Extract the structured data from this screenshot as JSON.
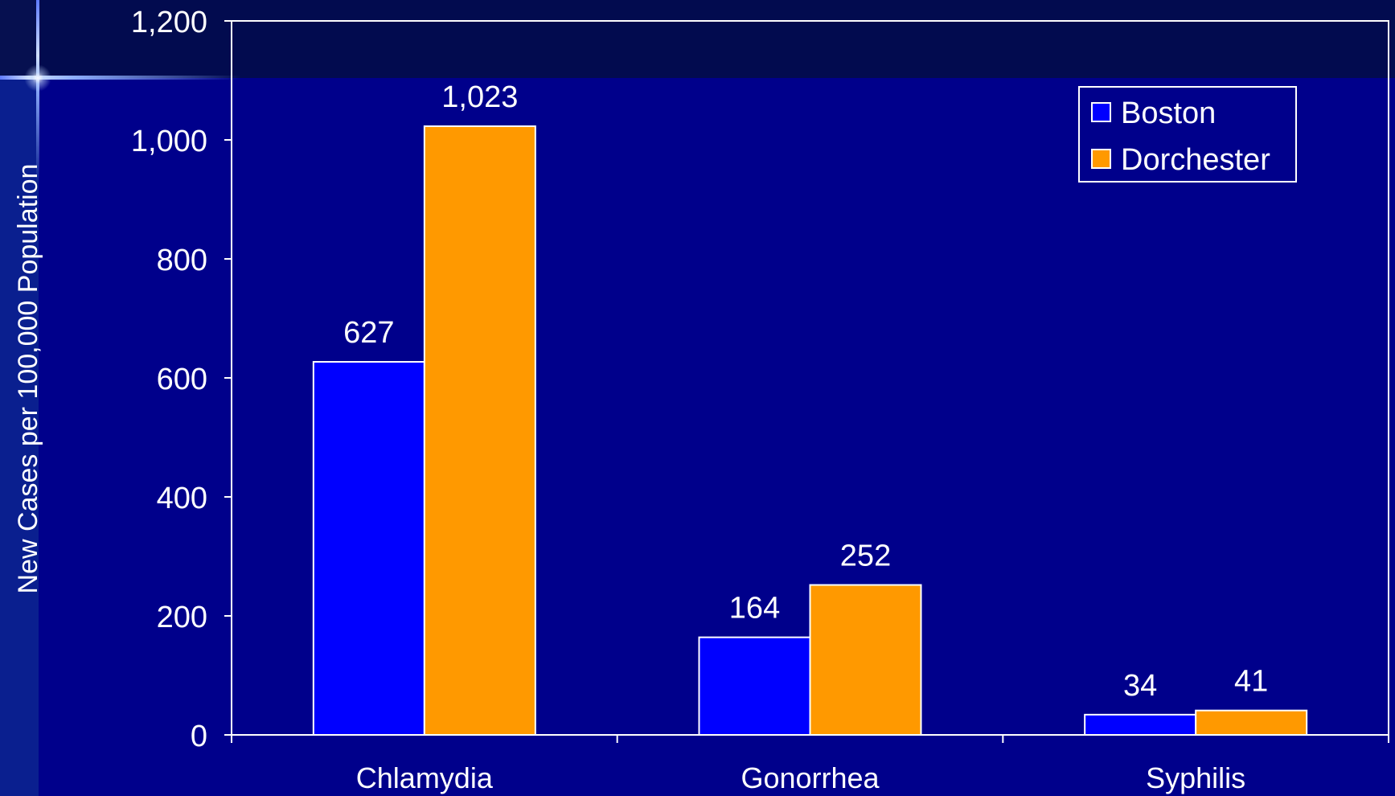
{
  "chart_data": {
    "type": "bar",
    "categories": [
      "Chlamydia",
      "Gonorrhea",
      "Syphilis"
    ],
    "series": [
      {
        "name": "Boston",
        "values": [
          627,
          164,
          34
        ],
        "color": "#0000ff"
      },
      {
        "name": "Dorchester",
        "values": [
          1023,
          252,
          41
        ],
        "color": "#ff9900"
      }
    ],
    "data_labels": [
      [
        "627",
        "164",
        "34"
      ],
      [
        "1,023",
        "252",
        "41"
      ]
    ],
    "ylabel": "New Cases per 100,000 Population",
    "ylim": [
      0,
      1200
    ],
    "yticks": [
      0,
      200,
      400,
      600,
      800,
      1000,
      1200
    ],
    "ytick_labels": [
      "0",
      "200",
      "400",
      "600",
      "800",
      "1,000",
      "1,200"
    ],
    "legend_position": "top-right",
    "grid": false,
    "axis_color": "#ffffff",
    "background_color": "#00008b"
  }
}
